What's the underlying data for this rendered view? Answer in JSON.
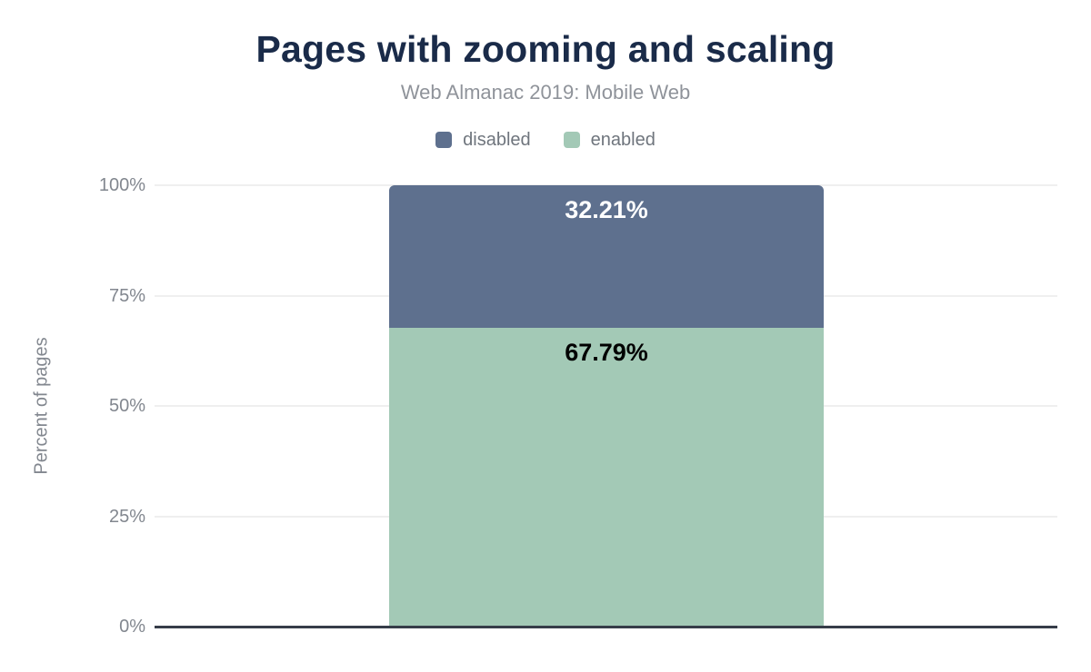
{
  "chart_data": {
    "type": "bar",
    "stacked": true,
    "title": "Pages with zooming and scaling",
    "subtitle": "Web Almanac 2019: Mobile Web",
    "ylabel": "Percent of pages",
    "xlabel": "",
    "ylim": [
      0,
      100
    ],
    "ytick_labels": [
      "0%",
      "25%",
      "50%",
      "75%",
      "100%"
    ],
    "ytick_values": [
      0,
      25,
      50,
      75,
      100
    ],
    "grid": true,
    "legend_position": "top",
    "categories": [
      ""
    ],
    "series": [
      {
        "name": "disabled",
        "value": 32.21,
        "label": "32.21%",
        "color": "#5e708e",
        "label_color": "#ffffff"
      },
      {
        "name": "enabled",
        "value": 67.79,
        "label": "67.79%",
        "color": "#a3c9b6",
        "label_color": "#000000"
      }
    ],
    "colors": {
      "title": "#1a2b49",
      "subtitle": "#8f939a",
      "tick_label": "#82878f",
      "legend_label": "#6f757d",
      "gridline": "#efefef",
      "axis_line": "#363d49",
      "background": "#ffffff"
    }
  }
}
